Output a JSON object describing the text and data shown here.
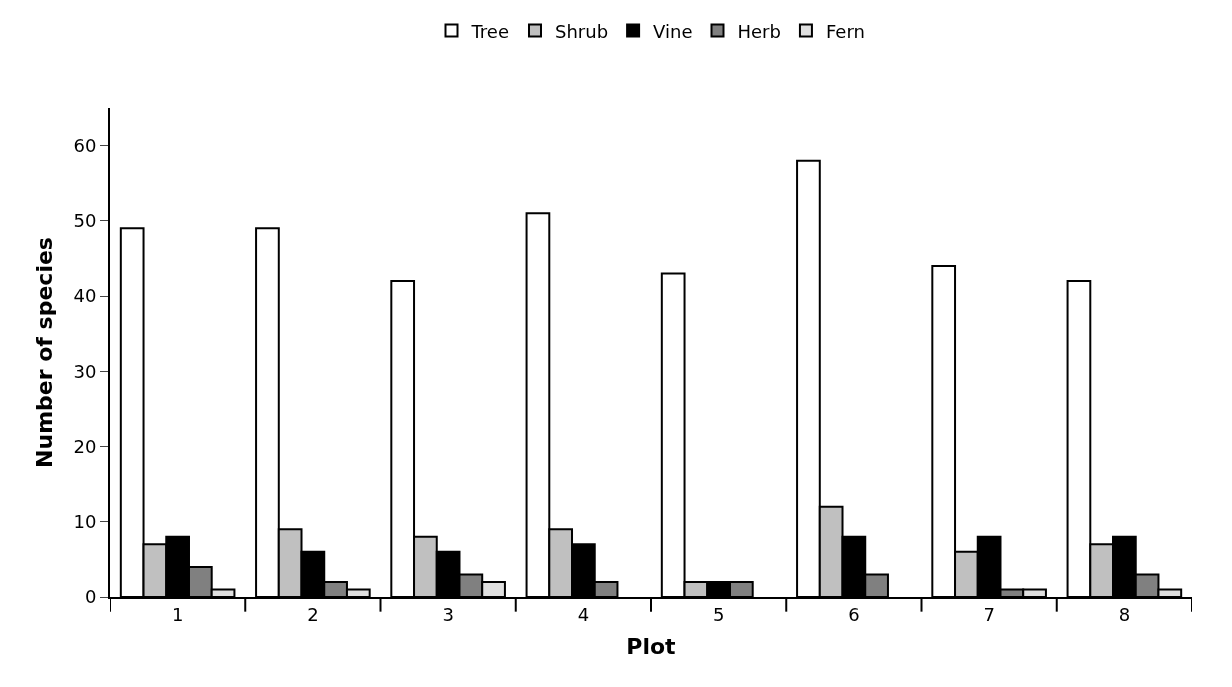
{
  "chart_data": {
    "type": "bar",
    "xlabel": "Plot",
    "ylabel": "Number of species",
    "categories": [
      "1",
      "2",
      "3",
      "4",
      "5",
      "6",
      "7",
      "8"
    ],
    "series": [
      {
        "name": "Tree",
        "color": "#ffffff",
        "values": [
          49,
          49,
          42,
          51,
          43,
          58,
          44,
          42
        ]
      },
      {
        "name": "Shrub",
        "color": "#c0c0c0",
        "values": [
          7,
          9,
          8,
          9,
          2,
          12,
          6,
          7
        ]
      },
      {
        "name": "Vine",
        "color": "#000000",
        "values": [
          8,
          6,
          6,
          7,
          2,
          8,
          8,
          8
        ]
      },
      {
        "name": "Herb",
        "color": "#808080",
        "values": [
          4,
          2,
          3,
          2,
          2,
          3,
          1,
          3
        ]
      },
      {
        "name": "Fern",
        "color": "#e0e0e0",
        "values": [
          1,
          1,
          2,
          0,
          0,
          0,
          1,
          1
        ]
      }
    ],
    "ylim": [
      0,
      65
    ],
    "yticks": [
      0,
      10,
      20,
      30,
      40,
      50,
      60
    ],
    "legend": "top"
  }
}
